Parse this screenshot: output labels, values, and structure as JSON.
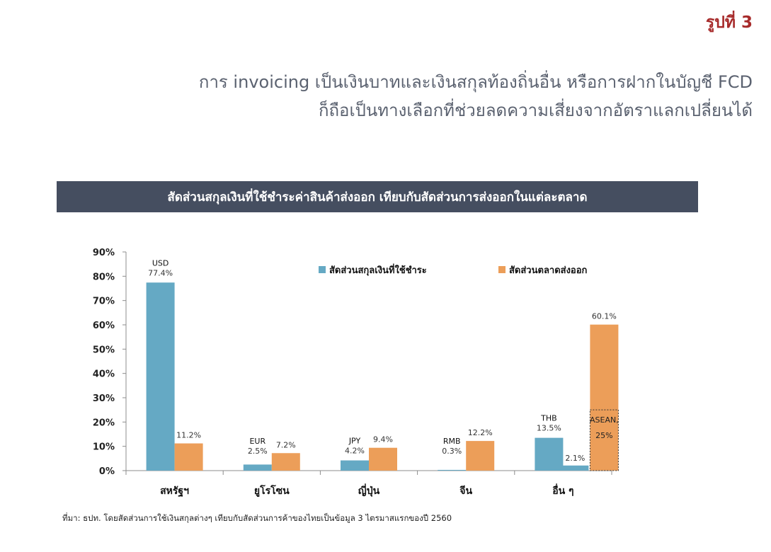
{
  "page": {
    "figure_number": "รูปที่ 3",
    "heading_line1": "การ invoicing เป็นเงินบาทและเงินสกุลท้องถิ่นอื่น หรือการฝากในบัญชี FCD",
    "heading_line2": "ก็ถือเป็นทางเลือกที่ช่วยลดความเสี่ยงจากอัตราแลกเปลี่ยนได้",
    "banner": "สัดส่วนสกุลเงินที่ใช้ชำระค่าสินค้าส่งออก เทียบกับสัดส่วนการส่งออกในแต่ละตลาด",
    "source": "ที่มา: ธปท. โดยสัดส่วนการใช้เงินสกุลต่างๆ เทียบกับสัดส่วนการค้าของไทยเป็นข้อมูล 3 ไตรมาสแรกของปี 2560"
  },
  "chart_data": {
    "type": "bar",
    "categories": [
      "สหรัฐฯ",
      "ยูโรโซน",
      "ญี่ปุ่น",
      "จีน",
      "อื่น ๆ"
    ],
    "series": [
      {
        "name": "สัดส่วนสกุลเงินที่ใช้ชำระ",
        "color": "#65a9c4",
        "values": [
          77.4,
          2.5,
          4.2,
          0.3,
          13.5
        ],
        "labels": [
          "77.4%",
          "2.5%",
          "4.2%",
          "0.3%",
          "13.5%"
        ],
        "currencies": [
          "USD",
          "EUR",
          "JPY",
          "RMB",
          "THB"
        ]
      },
      {
        "name": "สัดส่วนตลาดส่งออก",
        "color": "#ec9e59",
        "values": [
          11.2,
          7.2,
          9.4,
          12.2,
          60.1
        ],
        "labels": [
          "11.2%",
          "7.2%",
          "9.4%",
          "12.2%",
          "60.1%"
        ]
      }
    ],
    "extra_bar": {
      "category": "อื่น ๆ",
      "value": 2.1,
      "label": "2.1%",
      "color": "#65a9c4"
    },
    "annotation": {
      "line1": "ASEAN,",
      "line2": "25%",
      "value": 25
    },
    "yticks": [
      "0%",
      "10%",
      "20%",
      "30%",
      "40%",
      "50%",
      "60%",
      "70%",
      "80%",
      "90%"
    ],
    "ylim": [
      0,
      90
    ],
    "legend_position": "top-right",
    "grid": false
  }
}
